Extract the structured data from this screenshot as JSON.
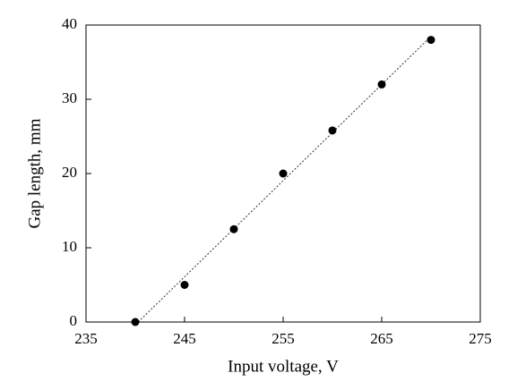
{
  "chart_data": {
    "type": "scatter",
    "x_label": "Input voltage, V",
    "y_label": "Gap length, mm",
    "x": [
      240,
      245,
      250,
      255,
      260,
      265,
      270
    ],
    "values": [
      0,
      5,
      12.5,
      20,
      25.8,
      32,
      38
    ],
    "color": "#000000",
    "trendline": "linear",
    "xlim": [
      235,
      275
    ],
    "xticks": [
      235,
      245,
      255,
      265,
      275
    ],
    "ylim": [
      0,
      40
    ],
    "yticks": [
      0,
      10,
      20,
      30,
      40
    ]
  }
}
